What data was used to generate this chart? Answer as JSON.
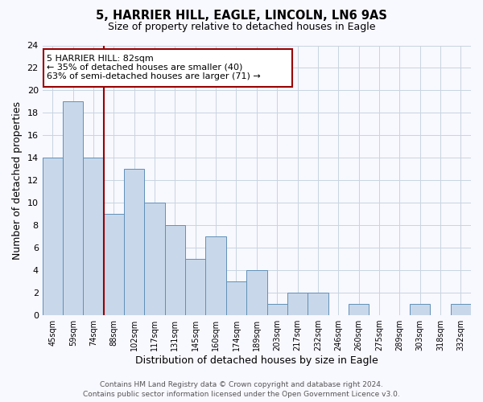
{
  "title": "5, HARRIER HILL, EAGLE, LINCOLN, LN6 9AS",
  "subtitle": "Size of property relative to detached houses in Eagle",
  "xlabel": "Distribution of detached houses by size in Eagle",
  "ylabel": "Number of detached properties",
  "bin_labels": [
    "45sqm",
    "59sqm",
    "74sqm",
    "88sqm",
    "102sqm",
    "117sqm",
    "131sqm",
    "145sqm",
    "160sqm",
    "174sqm",
    "189sqm",
    "203sqm",
    "217sqm",
    "232sqm",
    "246sqm",
    "260sqm",
    "275sqm",
    "289sqm",
    "303sqm",
    "318sqm",
    "332sqm"
  ],
  "bin_values": [
    14,
    19,
    14,
    9,
    13,
    10,
    8,
    5,
    7,
    3,
    4,
    1,
    2,
    2,
    0,
    1,
    0,
    0,
    1,
    0,
    1
  ],
  "bar_color": "#c8d8ea",
  "bar_edge_color": "#6090b8",
  "vline_x_index": 2.5,
  "vline_color": "#990000",
  "annotation_line1": "5 HARRIER HILL: 82sqm",
  "annotation_line2": "← 35% of detached houses are smaller (40)",
  "annotation_line3": "63% of semi-detached houses are larger (71) →",
  "ylim": [
    0,
    24
  ],
  "yticks": [
    0,
    2,
    4,
    6,
    8,
    10,
    12,
    14,
    16,
    18,
    20,
    22,
    24
  ],
  "grid_color": "#c8d4e0",
  "footer_text": "Contains HM Land Registry data © Crown copyright and database right 2024.\nContains public sector information licensed under the Open Government Licence v3.0.",
  "bg_color": "#f8f8ff"
}
